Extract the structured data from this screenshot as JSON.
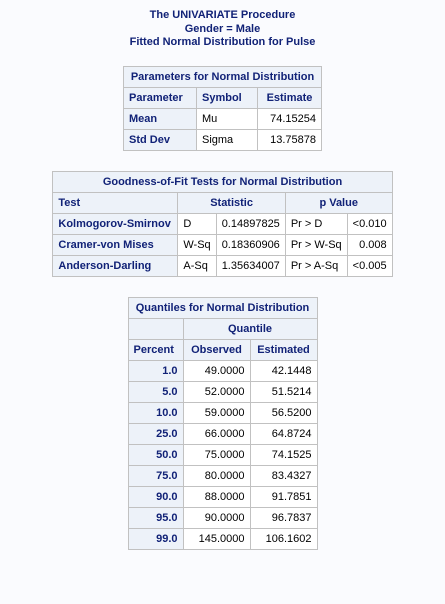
{
  "titles": {
    "line1": "The UNIVARIATE Procedure",
    "line2": "Gender = Male",
    "line3": "Fitted Normal Distribution for Pulse"
  },
  "parameters": {
    "caption": "Parameters for Normal Distribution",
    "headers": {
      "parameter": "Parameter",
      "symbol": "Symbol",
      "estimate": "Estimate"
    },
    "rows": [
      {
        "parameter": "Mean",
        "symbol": "Mu",
        "estimate": "74.15254"
      },
      {
        "parameter": "Std Dev",
        "symbol": "Sigma",
        "estimate": "13.75878"
      }
    ]
  },
  "goodness_of_fit": {
    "caption": "Goodness-of-Fit Tests for Normal Distribution",
    "headers": {
      "test": "Test",
      "statistic": "Statistic",
      "pvalue": "p Value"
    },
    "rows": [
      {
        "test": "Kolmogorov-Smirnov",
        "stat_name": "D",
        "stat_value": "0.14897825",
        "p_name": "Pr > D",
        "p_value": "<0.010"
      },
      {
        "test": "Cramer-von Mises",
        "stat_name": "W-Sq",
        "stat_value": "0.18360906",
        "p_name": "Pr > W-Sq",
        "p_value": "0.008"
      },
      {
        "test": "Anderson-Darling",
        "stat_name": "A-Sq",
        "stat_value": "1.35634007",
        "p_name": "Pr > A-Sq",
        "p_value": "<0.005"
      }
    ]
  },
  "quantiles": {
    "caption": "Quantiles for Normal Distribution",
    "headers": {
      "quantile": "Quantile",
      "percent": "Percent",
      "observed": "Observed",
      "estimated": "Estimated"
    },
    "rows": [
      {
        "percent": "1.0",
        "observed": "49.0000",
        "estimated": "42.1448"
      },
      {
        "percent": "5.0",
        "observed": "52.0000",
        "estimated": "51.5214"
      },
      {
        "percent": "10.0",
        "observed": "59.0000",
        "estimated": "56.5200"
      },
      {
        "percent": "25.0",
        "observed": "66.0000",
        "estimated": "64.8724"
      },
      {
        "percent": "50.0",
        "observed": "75.0000",
        "estimated": "74.1525"
      },
      {
        "percent": "75.0",
        "observed": "80.0000",
        "estimated": "83.4327"
      },
      {
        "percent": "90.0",
        "observed": "88.0000",
        "estimated": "91.7851"
      },
      {
        "percent": "95.0",
        "observed": "90.0000",
        "estimated": "96.7837"
      },
      {
        "percent": "99.0",
        "observed": "145.0000",
        "estimated": "106.1602"
      }
    ]
  }
}
